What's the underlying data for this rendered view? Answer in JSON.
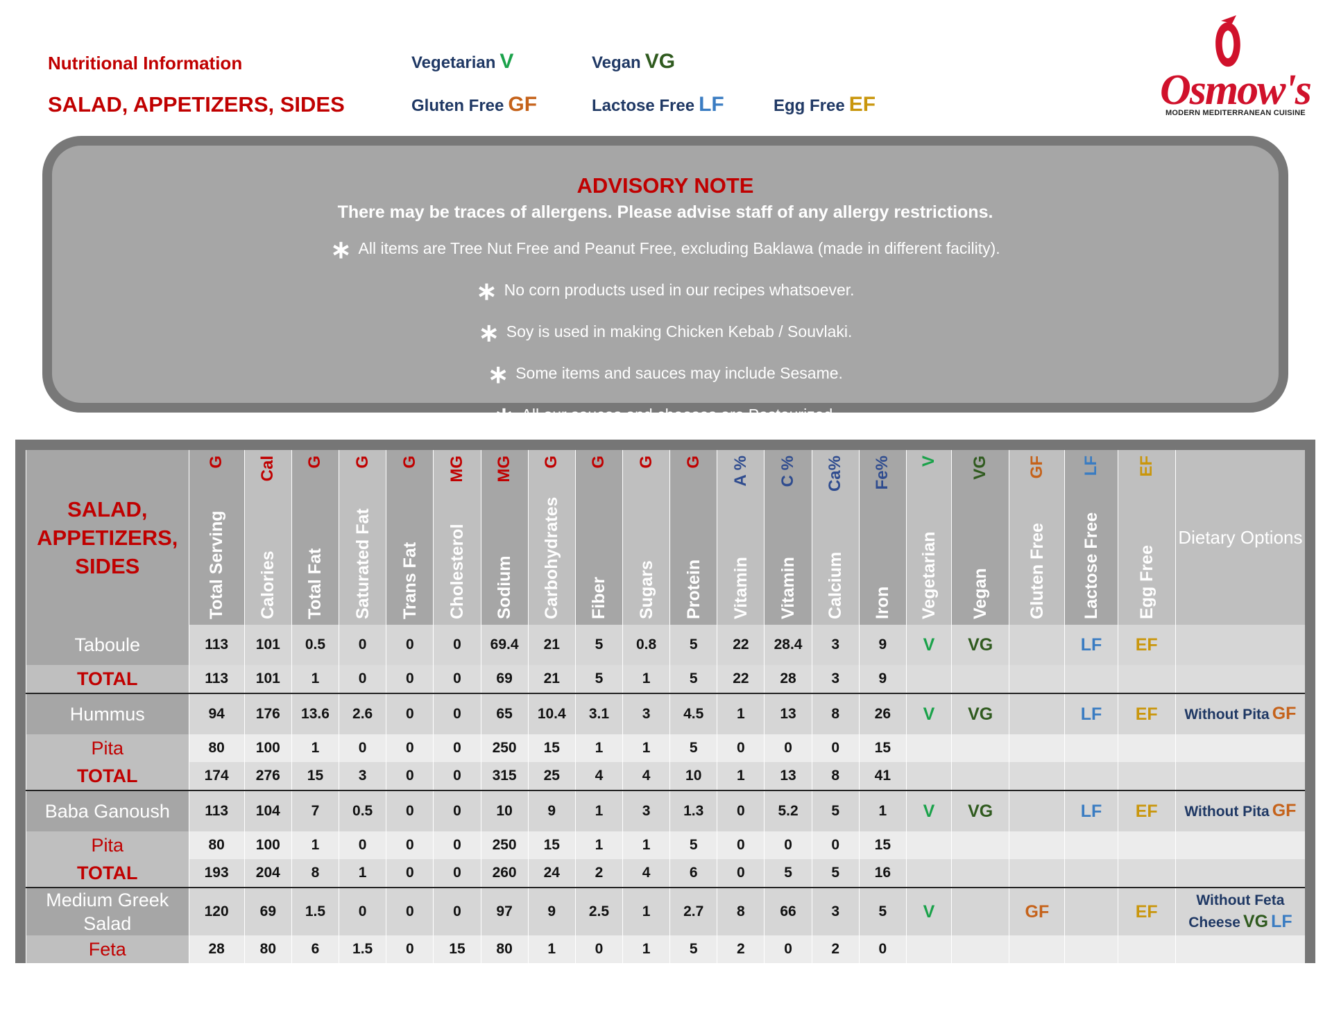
{
  "header": {
    "title": "Nutritional Information",
    "subtitle": "SALAD, APPETIZERS, SIDES"
  },
  "legend": [
    {
      "label": "Vegetarian",
      "code": "V",
      "color": "#1aa24a"
    },
    {
      "label": "Vegan",
      "code": "VG",
      "color": "#2f5a1e"
    },
    {
      "label": "Gluten Free",
      "code": "GF",
      "color": "#c5621a"
    },
    {
      "label": "Lactose Free",
      "code": "LF",
      "color": "#3a7cc2"
    },
    {
      "label": "Egg Free",
      "code": "EF",
      "color": "#c9960c"
    }
  ],
  "logo": {
    "name": "Osmow's",
    "tagline": "MODERN MEDITERRANEAN CUISINE"
  },
  "advisory": {
    "title": "ADVISORY NOTE",
    "lead": "There may be traces of allergens. Please advise staff of any allergy restrictions.",
    "items": [
      "All items are Tree Nut Free and Peanut Free, excluding Baklawa (made in different facility).",
      "No corn products used in our recipes whatsoever.",
      "Soy is used in making Chicken Kebab / Souvlaki.",
      "Some items and sauces may include Sesame.",
      "All our sauces and cheeses are Pasteurized."
    ]
  },
  "table": {
    "title": "SALAD, APPETIZERS, SIDES",
    "nutrient_columns": [
      {
        "name": "Total Serving",
        "unit": "G",
        "color": "#c00000"
      },
      {
        "name": "Calories",
        "unit": "Cal",
        "color": "#c00000"
      },
      {
        "name": "Total Fat",
        "unit": "G",
        "color": "#c00000"
      },
      {
        "name": "Saturated Fat",
        "unit": "G",
        "color": "#c00000"
      },
      {
        "name": "Trans Fat",
        "unit": "G",
        "color": "#c00000"
      },
      {
        "name": "Cholesterol",
        "unit": "MG",
        "color": "#c00000"
      },
      {
        "name": "Sodium",
        "unit": "MG",
        "color": "#c00000"
      },
      {
        "name": "Carbohydrates",
        "unit": "G",
        "color": "#c00000"
      },
      {
        "name": "Fiber",
        "unit": "G",
        "color": "#c00000"
      },
      {
        "name": "Sugars",
        "unit": "G",
        "color": "#c00000"
      },
      {
        "name": "Protein",
        "unit": "G",
        "color": "#c00000"
      },
      {
        "name": "Vitamin",
        "unit": "A %",
        "color": "#2f4c8f"
      },
      {
        "name": "Vitamin",
        "unit": "C %",
        "color": "#2f4c8f"
      },
      {
        "name": "Calcium",
        "unit": "Ca%",
        "color": "#2f4c8f"
      },
      {
        "name": "Iron",
        "unit": "Fe%",
        "color": "#2f4c8f"
      }
    ],
    "diet_columns": [
      {
        "name": "Vegetarian",
        "unit": "V"
      },
      {
        "name": "Vegan",
        "unit": "VG"
      },
      {
        "name": "Gluten Free",
        "unit": "GF"
      },
      {
        "name": "Lactose Free",
        "unit": "LF"
      },
      {
        "name": "Egg Free",
        "unit": "EF"
      }
    ],
    "options_header": "Dietary Options",
    "groups": [
      {
        "item": {
          "name": "Taboule",
          "values": [
            113,
            101,
            0.5,
            0,
            0,
            0,
            69.4,
            21,
            5,
            0.8,
            5,
            22,
            28.4,
            3,
            9
          ],
          "flags": [
            "V",
            "VG",
            "LF",
            "EF"
          ]
        },
        "total": {
          "name": "TOTAL",
          "values": [
            113,
            101,
            1,
            0,
            0,
            0,
            69,
            21,
            5,
            1,
            5,
            22,
            28,
            3,
            9
          ]
        }
      },
      {
        "item": {
          "name": "Hummus",
          "values": [
            94,
            176,
            13.6,
            2.6,
            0,
            0,
            65,
            10.4,
            3.1,
            3,
            4.5,
            1,
            13,
            8,
            26
          ],
          "flags": [
            "V",
            "VG",
            "LF",
            "EF"
          ],
          "option": {
            "text": "Without Pita",
            "codes": [
              "GF"
            ]
          }
        },
        "extras": [
          {
            "name": "Pita",
            "values": [
              80,
              100,
              1,
              0,
              0,
              0,
              250,
              15,
              1,
              1,
              5,
              0,
              0,
              0,
              15
            ]
          }
        ],
        "total": {
          "name": "TOTAL",
          "values": [
            174,
            276,
            15,
            3,
            0,
            0,
            315,
            25,
            4,
            4,
            10,
            1,
            13,
            8,
            41
          ]
        }
      },
      {
        "item": {
          "name": "Baba Ganoush",
          "values": [
            113,
            104,
            7,
            0.5,
            0,
            0,
            10,
            9,
            1,
            3,
            1.3,
            0,
            5.2,
            5,
            1
          ],
          "flags": [
            "V",
            "VG",
            "LF",
            "EF"
          ],
          "option": {
            "text": "Without Pita",
            "codes": [
              "GF"
            ]
          }
        },
        "extras": [
          {
            "name": "Pita",
            "values": [
              80,
              100,
              1,
              0,
              0,
              0,
              250,
              15,
              1,
              1,
              5,
              0,
              0,
              0,
              15
            ]
          }
        ],
        "total": {
          "name": "TOTAL",
          "values": [
            193,
            204,
            8,
            1,
            0,
            0,
            260,
            24,
            2,
            4,
            6,
            0,
            5,
            5,
            16
          ]
        }
      },
      {
        "item": {
          "name": "Medium Greek Salad",
          "values": [
            120,
            69,
            1.5,
            0,
            0,
            0,
            97,
            9,
            2.5,
            1,
            2.7,
            8,
            66,
            3,
            5
          ],
          "flags": [
            "V",
            "GF",
            "EF"
          ],
          "option": {
            "text": "Without Feta Cheese",
            "codes": [
              "VG",
              "LF"
            ]
          }
        },
        "extras": [
          {
            "name": "Feta",
            "values": [
              28,
              80,
              6,
              1.5,
              0,
              15,
              80,
              1,
              0,
              1,
              5,
              2,
              0,
              2,
              0
            ]
          }
        ]
      }
    ]
  }
}
